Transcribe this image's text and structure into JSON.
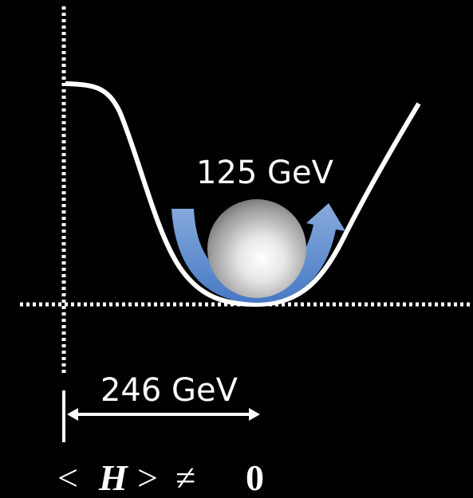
{
  "mass_label": "125 GeV",
  "vev_label": "246 GeV",
  "formula": [
    "<",
    "H",
    ">",
    "≠",
    "0"
  ]
}
